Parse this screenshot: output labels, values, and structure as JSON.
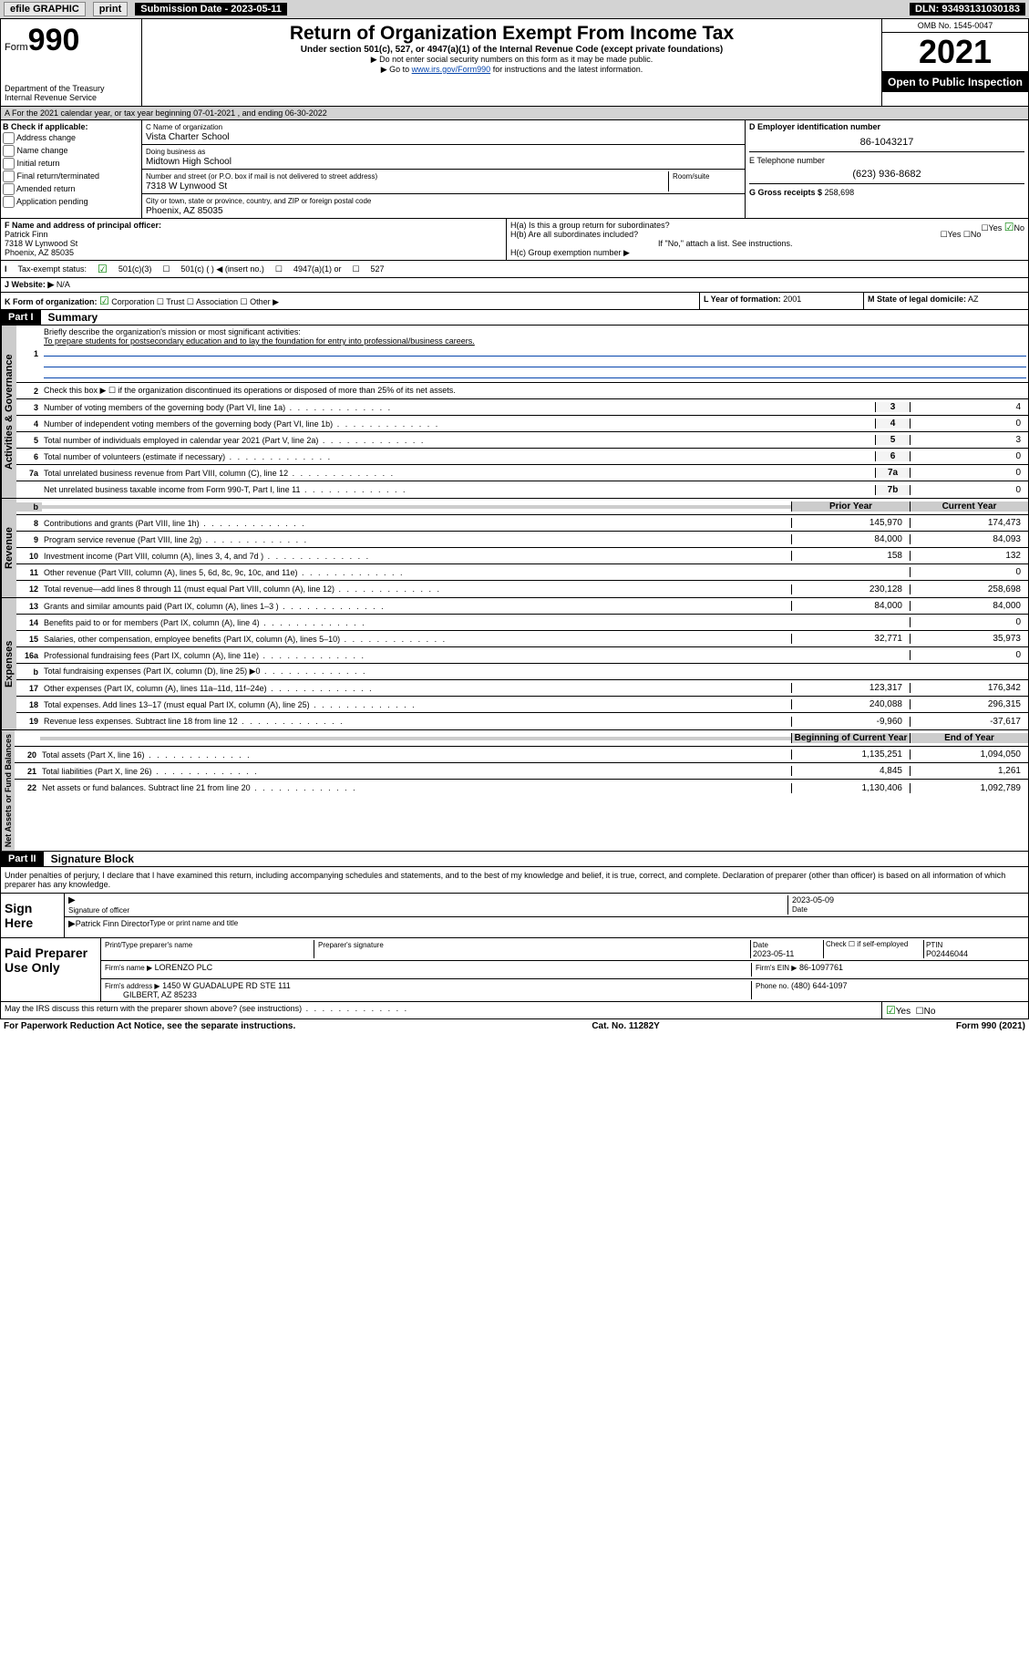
{
  "topbar": {
    "efile": "efile GRAPHIC",
    "print": "print",
    "submission": "Submission Date - 2023-05-11",
    "dln": "DLN: 93493131030183"
  },
  "header": {
    "form_label": "Form",
    "form_num": "990",
    "dept": "Department of the Treasury",
    "irs": "Internal Revenue Service",
    "title": "Return of Organization Exempt From Income Tax",
    "subtitle": "Under section 501(c), 527, or 4947(a)(1) of the Internal Revenue Code (except private foundations)",
    "instr1": "▶ Do not enter social security numbers on this form as it may be made public.",
    "instr2_pre": "▶ Go to ",
    "instr2_link": "www.irs.gov/Form990",
    "instr2_post": " for instructions and the latest information.",
    "omb": "OMB No. 1545-0047",
    "year": "2021",
    "inspect": "Open to Public Inspection"
  },
  "sectionA": {
    "text": "A For the 2021 calendar year, or tax year beginning 07-01-2021    , and ending 06-30-2022"
  },
  "B": {
    "label": "B Check if applicable:",
    "opts": [
      "Address change",
      "Name change",
      "Initial return",
      "Final return/terminated",
      "Amended return",
      "Application pending"
    ]
  },
  "C": {
    "label": "C Name of organization",
    "name": "Vista Charter School",
    "dba_label": "Doing business as",
    "dba": "Midtown High School",
    "street_label": "Number and street (or P.O. box if mail is not delivered to street address)",
    "room_label": "Room/suite",
    "street": "7318 W Lynwood St",
    "city_label": "City or town, state or province, country, and ZIP or foreign postal code",
    "city": "Phoenix, AZ  85035"
  },
  "D": {
    "label": "D Employer identification number",
    "val": "86-1043217"
  },
  "E": {
    "label": "E Telephone number",
    "val": "(623) 936-8682"
  },
  "G": {
    "label": "G Gross receipts $",
    "val": "258,698"
  },
  "F": {
    "label": "F Name and address of principal officer:",
    "name": "Patrick Finn",
    "addr1": "7318 W Lynwood St",
    "addr2": "Phoenix, AZ  85035"
  },
  "H": {
    "a": "H(a)  Is this a group return for subordinates?",
    "b": "H(b)  Are all subordinates included?",
    "note": "If \"No,\" attach a list. See instructions.",
    "c": "H(c)  Group exemption number ▶",
    "yes": "Yes",
    "no": "No"
  },
  "I": {
    "label": "Tax-exempt status:",
    "c3": "501(c)(3)",
    "c": "501(c) (   ) ◀ (insert no.)",
    "a4947": "4947(a)(1) or",
    "s527": "527"
  },
  "J": {
    "label": "Website: ▶",
    "val": "N/A"
  },
  "K": {
    "label": "K Form of organization:",
    "corp": "Corporation",
    "trust": "Trust",
    "assoc": "Association",
    "other": "Other ▶"
  },
  "L": {
    "label": "L Year of formation:",
    "val": "2001"
  },
  "M": {
    "label": "M State of legal domicile:",
    "val": "AZ"
  },
  "part1": {
    "title": "Summary",
    "tab_gov": "Activities & Governance",
    "tab_rev": "Revenue",
    "tab_exp": "Expenses",
    "tab_net": "Net Assets or Fund Balances",
    "l1a": "Briefly describe the organization's mission or most significant activities:",
    "l1b": "To prepare students for postsecondary education and to lay the foundation for entry into professional/business careers.",
    "l2": "Check this box ▶ ☐  if the organization discontinued its operations or disposed of more than 25% of its net assets.",
    "lines_gov": [
      {
        "n": "3",
        "d": "Number of voting members of the governing body (Part VI, line 1a)",
        "ln": "3",
        "v": "4"
      },
      {
        "n": "4",
        "d": "Number of independent voting members of the governing body (Part VI, line 1b)",
        "ln": "4",
        "v": "0"
      },
      {
        "n": "5",
        "d": "Total number of individuals employed in calendar year 2021 (Part V, line 2a)",
        "ln": "5",
        "v": "3"
      },
      {
        "n": "6",
        "d": "Total number of volunteers (estimate if necessary)",
        "ln": "6",
        "v": "0"
      },
      {
        "n": "7a",
        "d": "Total unrelated business revenue from Part VIII, column (C), line 12",
        "ln": "7a",
        "v": "0"
      },
      {
        "n": "",
        "d": "Net unrelated business taxable income from Form 990-T, Part I, line 11",
        "ln": "7b",
        "v": "0"
      }
    ],
    "col_prior": "Prior Year",
    "col_curr": "Current Year",
    "lines_rev": [
      {
        "n": "8",
        "d": "Contributions and grants (Part VIII, line 1h)",
        "p": "145,970",
        "c": "174,473"
      },
      {
        "n": "9",
        "d": "Program service revenue (Part VIII, line 2g)",
        "p": "84,000",
        "c": "84,093"
      },
      {
        "n": "10",
        "d": "Investment income (Part VIII, column (A), lines 3, 4, and 7d )",
        "p": "158",
        "c": "132"
      },
      {
        "n": "11",
        "d": "Other revenue (Part VIII, column (A), lines 5, 6d, 8c, 9c, 10c, and 11e)",
        "p": "",
        "c": "0"
      },
      {
        "n": "12",
        "d": "Total revenue—add lines 8 through 11 (must equal Part VIII, column (A), line 12)",
        "p": "230,128",
        "c": "258,698"
      }
    ],
    "lines_exp": [
      {
        "n": "13",
        "d": "Grants and similar amounts paid (Part IX, column (A), lines 1–3 )",
        "p": "84,000",
        "c": "84,000"
      },
      {
        "n": "14",
        "d": "Benefits paid to or for members (Part IX, column (A), line 4)",
        "p": "",
        "c": "0"
      },
      {
        "n": "15",
        "d": "Salaries, other compensation, employee benefits (Part IX, column (A), lines 5–10)",
        "p": "32,771",
        "c": "35,973"
      },
      {
        "n": "16a",
        "d": "Professional fundraising fees (Part IX, column (A), line 11e)",
        "p": "",
        "c": "0"
      },
      {
        "n": "b",
        "d": "Total fundraising expenses (Part IX, column (D), line 25) ▶0",
        "p": "",
        "c": "",
        "shade": true
      },
      {
        "n": "17",
        "d": "Other expenses (Part IX, column (A), lines 11a–11d, 11f–24e)",
        "p": "123,317",
        "c": "176,342"
      },
      {
        "n": "18",
        "d": "Total expenses. Add lines 13–17 (must equal Part IX, column (A), line 25)",
        "p": "240,088",
        "c": "296,315"
      },
      {
        "n": "19",
        "d": "Revenue less expenses. Subtract line 18 from line 12",
        "p": "-9,960",
        "c": "-37,617"
      }
    ],
    "col_begin": "Beginning of Current Year",
    "col_end": "End of Year",
    "lines_net": [
      {
        "n": "20",
        "d": "Total assets (Part X, line 16)",
        "p": "1,135,251",
        "c": "1,094,050"
      },
      {
        "n": "21",
        "d": "Total liabilities (Part X, line 26)",
        "p": "4,845",
        "c": "1,261"
      },
      {
        "n": "22",
        "d": "Net assets or fund balances. Subtract line 21 from line 20",
        "p": "1,130,406",
        "c": "1,092,789"
      }
    ]
  },
  "part2": {
    "title": "Signature Block",
    "penalty": "Under penalties of perjury, I declare that I have examined this return, including accompanying schedules and statements, and to the best of my knowledge and belief, it is true, correct, and complete. Declaration of preparer (other than officer) is based on all information of which preparer has any knowledge."
  },
  "sign": {
    "label": "Sign Here",
    "sig_label": "Signature of officer",
    "date_label": "Date",
    "date": "2023-05-09",
    "name": "Patrick Finn  Director",
    "name_label": "Type or print name and title"
  },
  "preparer": {
    "label": "Paid Preparer Use Only",
    "print_label": "Print/Type preparer's name",
    "sig_label": "Preparer's signature",
    "date_label": "Date",
    "date": "2023-05-11",
    "check_label": "Check ☐ if self-employed",
    "ptin_label": "PTIN",
    "ptin": "P02446044",
    "firm_label": "Firm's name   ▶",
    "firm": "LORENZO PLC",
    "ein_label": "Firm's EIN ▶",
    "ein": "86-1097761",
    "addr_label": "Firm's address ▶",
    "addr1": "1450 W GUADALUPE RD STE 111",
    "addr2": "GILBERT, AZ  85233",
    "phone_label": "Phone no.",
    "phone": "(480) 644-1097"
  },
  "discuss": {
    "q": "May the IRS discuss this return with the preparer shown above? (see instructions)",
    "yes": "Yes",
    "no": "No"
  },
  "footer": {
    "left": "For Paperwork Reduction Act Notice, see the separate instructions.",
    "mid": "Cat. No. 11282Y",
    "right": "Form 990 (2021)"
  }
}
